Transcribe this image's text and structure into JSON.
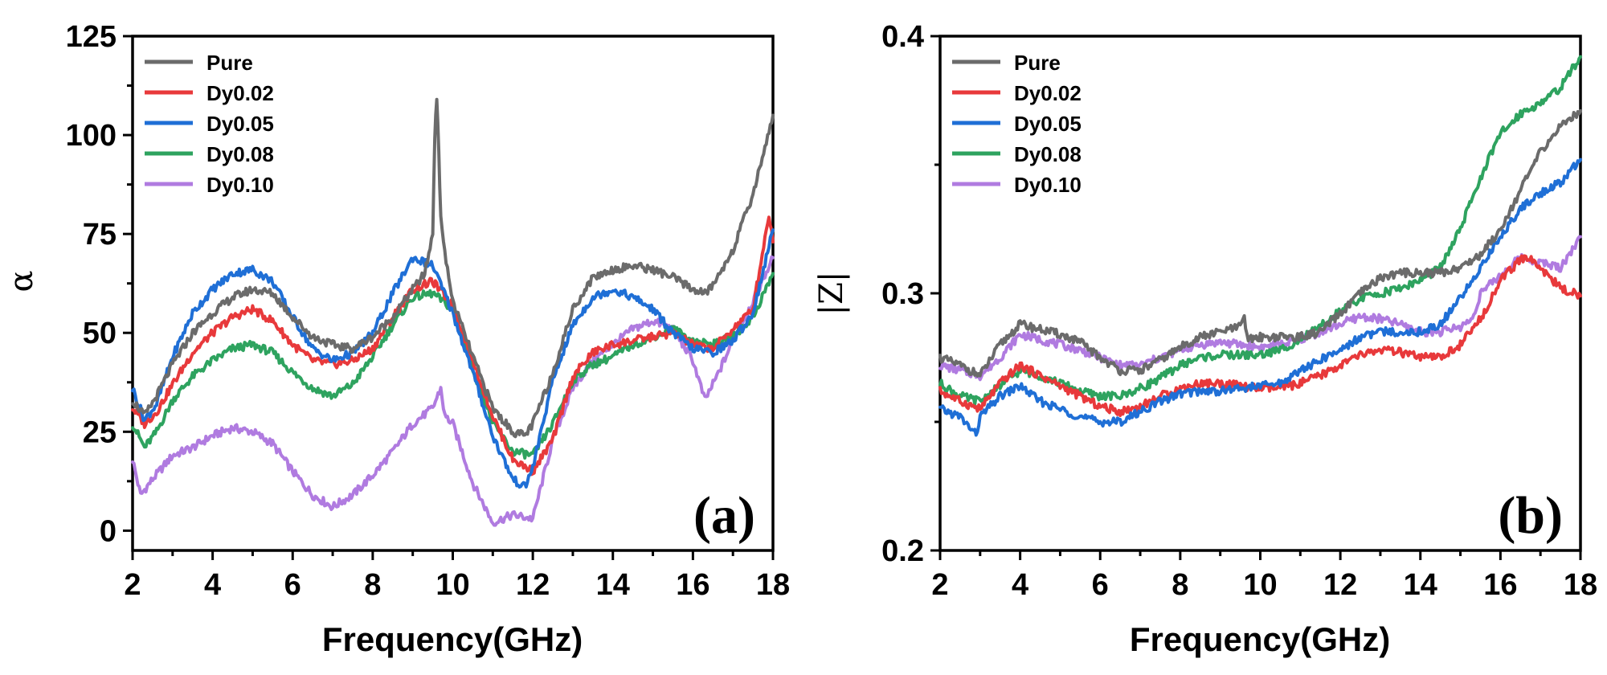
{
  "colors": {
    "Pure": "#6b6b6b",
    "Dy0.02": "#e8393b",
    "Dy0.05": "#1f6fd6",
    "Dy0.08": "#2ea35f",
    "Dy0.10": "#b07be0"
  },
  "chart_data": [
    {
      "type": "line",
      "panel_label": "(a)",
      "title": "",
      "xlabel": "Frequency(GHz)",
      "ylabel": "α",
      "xlim": [
        2,
        18
      ],
      "ylim": [
        -5,
        125
      ],
      "xticks": [
        2,
        4,
        6,
        8,
        10,
        12,
        14,
        16,
        18
      ],
      "yticks": [
        0,
        25,
        50,
        75,
        100,
        125
      ],
      "legend_position": "top-left",
      "series": [
        {
          "name": "Pure",
          "x": [
            2,
            2.3,
            2.6,
            3,
            3.5,
            4,
            4.5,
            5,
            5.5,
            6,
            6.5,
            7,
            7.5,
            8,
            8.5,
            9,
            9.3,
            9.5,
            9.55,
            9.6,
            9.65,
            9.7,
            9.8,
            10,
            10.5,
            11,
            11.5,
            11.8,
            12,
            12.5,
            13,
            13.5,
            14,
            14.5,
            15,
            15.5,
            16,
            16.3,
            16.5,
            17,
            17.5,
            18
          ],
          "y": [
            33,
            29,
            34,
            42,
            50,
            55,
            59,
            61,
            60,
            54,
            49,
            47,
            46,
            49,
            54,
            61,
            65,
            75,
            100,
            110,
            95,
            80,
            70,
            58,
            44,
            31,
            25,
            24,
            27,
            40,
            56,
            64,
            66,
            67,
            66,
            64,
            61,
            60,
            62,
            71,
            85,
            105
          ]
        },
        {
          "name": "Dy0.02",
          "x": [
            2,
            2.3,
            2.6,
            3,
            3.5,
            4,
            4.5,
            5,
            5.5,
            6,
            6.5,
            7,
            7.5,
            8,
            8.5,
            9,
            9.5,
            10,
            10.5,
            11,
            11.5,
            12,
            12.5,
            13,
            13.5,
            14,
            14.5,
            15,
            15.5,
            16,
            16.5,
            17,
            17.5,
            17.9,
            18
          ],
          "y": [
            31,
            27,
            30,
            37,
            45,
            50,
            54,
            56,
            53,
            47,
            43,
            42,
            43,
            46,
            54,
            61,
            63,
            57,
            43,
            29,
            18,
            15,
            23,
            39,
            45,
            47,
            48,
            49,
            50,
            47,
            46,
            51,
            56,
            80,
            73
          ]
        },
        {
          "name": "Dy0.05",
          "x": [
            2,
            2.3,
            2.6,
            3,
            3.5,
            4,
            4.5,
            5,
            5.5,
            6,
            6.5,
            7,
            7.5,
            8,
            8.5,
            9,
            9.5,
            10,
            10.5,
            11,
            11.5,
            11.8,
            12,
            12.5,
            13,
            13.5,
            14,
            14.5,
            15,
            15.5,
            16,
            16.5,
            17,
            17.5,
            18
          ],
          "y": [
            36,
            28,
            32,
            44,
            55,
            61,
            65,
            66,
            63,
            54,
            46,
            43,
            45,
            50,
            60,
            69,
            67,
            55,
            40,
            24,
            13,
            11,
            16,
            38,
            52,
            59,
            61,
            59,
            56,
            50,
            46,
            45,
            48,
            55,
            76
          ]
        },
        {
          "name": "Dy0.08",
          "x": [
            2,
            2.3,
            2.6,
            3,
            3.5,
            4,
            4.5,
            5,
            5.5,
            6,
            6.5,
            7,
            7.5,
            8,
            8.5,
            9,
            9.5,
            10,
            10.5,
            11,
            11.5,
            12,
            12.5,
            13,
            13.5,
            14,
            14.5,
            15,
            15.5,
            16,
            16.5,
            17,
            17.5,
            18
          ],
          "y": [
            27,
            21,
            25,
            33,
            39,
            43,
            46,
            47,
            45,
            40,
            36,
            34,
            37,
            44,
            52,
            59,
            60,
            56,
            41,
            27,
            20,
            19,
            27,
            38,
            42,
            44,
            47,
            49,
            51,
            48,
            47,
            49,
            54,
            65
          ]
        },
        {
          "name": "Dy0.10",
          "x": [
            2,
            2.2,
            2.5,
            3,
            3.5,
            4,
            4.5,
            5,
            5.5,
            6,
            6.5,
            7,
            7.5,
            8,
            8.5,
            9,
            9.5,
            9.7,
            9.8,
            10,
            10.5,
            11,
            11.5,
            12,
            12.5,
            13,
            13.5,
            14,
            14.5,
            15,
            15.5,
            16,
            16.3,
            16.6,
            17,
            17.5,
            18
          ],
          "y": [
            18,
            9,
            13,
            19,
            21,
            24,
            26,
            25,
            22,
            15,
            9,
            6,
            9,
            14,
            20,
            27,
            31,
            36,
            29,
            27,
            12,
            2,
            4,
            3,
            23,
            36,
            43,
            47,
            51,
            53,
            51,
            43,
            33,
            39,
            48,
            58,
            69
          ]
        }
      ]
    },
    {
      "type": "line",
      "panel_label": "(b)",
      "title": "",
      "xlabel": "Frequency(GHz)",
      "ylabel": "|Z|",
      "xlim": [
        2,
        18
      ],
      "ylim": [
        0.2,
        0.4
      ],
      "xticks": [
        2,
        4,
        6,
        8,
        10,
        12,
        14,
        16,
        18
      ],
      "yticks": [
        0.2,
        0.3,
        0.4
      ],
      "legend_position": "top-left",
      "series": [
        {
          "name": "Pure",
          "x": [
            2,
            2.5,
            3,
            3.5,
            4,
            4.5,
            5,
            5.5,
            6,
            6.5,
            7,
            7.5,
            8,
            8.5,
            9,
            9.5,
            9.6,
            9.7,
            10,
            10.5,
            11,
            11.5,
            12,
            12.5,
            13,
            13.5,
            14,
            14.5,
            15,
            15.5,
            16,
            16.5,
            17,
            17.5,
            18
          ],
          "y": [
            0.275,
            0.272,
            0.268,
            0.28,
            0.288,
            0.286,
            0.284,
            0.281,
            0.275,
            0.27,
            0.27,
            0.274,
            0.279,
            0.283,
            0.285,
            0.287,
            0.29,
            0.282,
            0.283,
            0.283,
            0.283,
            0.285,
            0.292,
            0.3,
            0.306,
            0.308,
            0.308,
            0.308,
            0.31,
            0.315,
            0.325,
            0.34,
            0.355,
            0.365,
            0.371
          ]
        },
        {
          "name": "Dy0.02",
          "x": [
            2,
            2.5,
            3,
            3.5,
            4,
            4.5,
            5,
            5.5,
            6,
            6.5,
            7,
            7.5,
            8,
            8.5,
            9,
            9.5,
            10,
            10.5,
            11,
            11.5,
            12,
            12.5,
            13,
            13.5,
            14,
            14.5,
            15,
            15.5,
            16,
            16.5,
            16.7,
            17,
            17.5,
            18
          ],
          "y": [
            0.262,
            0.258,
            0.255,
            0.265,
            0.272,
            0.268,
            0.264,
            0.26,
            0.256,
            0.254,
            0.256,
            0.26,
            0.263,
            0.265,
            0.265,
            0.264,
            0.263,
            0.263,
            0.265,
            0.268,
            0.272,
            0.276,
            0.278,
            0.277,
            0.275,
            0.275,
            0.28,
            0.29,
            0.305,
            0.313,
            0.314,
            0.31,
            0.302,
            0.299
          ]
        },
        {
          "name": "Dy0.05",
          "x": [
            2,
            2.5,
            2.9,
            3,
            3.5,
            4,
            4.5,
            5,
            5.5,
            6,
            6.5,
            7,
            7.5,
            8,
            8.5,
            9,
            9.5,
            10,
            10.5,
            11,
            11.5,
            12,
            12.5,
            13,
            13.5,
            14,
            14.5,
            15,
            15.5,
            16,
            16.5,
            17,
            17.5,
            18
          ],
          "y": [
            0.255,
            0.252,
            0.245,
            0.252,
            0.26,
            0.264,
            0.258,
            0.255,
            0.252,
            0.25,
            0.25,
            0.254,
            0.258,
            0.261,
            0.262,
            0.262,
            0.263,
            0.264,
            0.265,
            0.27,
            0.274,
            0.278,
            0.283,
            0.285,
            0.285,
            0.285,
            0.288,
            0.298,
            0.31,
            0.322,
            0.333,
            0.339,
            0.343,
            0.352
          ]
        },
        {
          "name": "Dy0.08",
          "x": [
            2,
            2.5,
            3,
            3.5,
            4,
            4.5,
            5,
            5.5,
            6,
            6.5,
            7,
            7.5,
            8,
            8.5,
            9,
            9.5,
            10,
            10.5,
            11,
            11.5,
            12,
            12.5,
            13,
            13.5,
            14,
            14.5,
            15,
            15.5,
            16,
            16.5,
            17,
            17.5,
            18
          ],
          "y": [
            0.265,
            0.26,
            0.258,
            0.264,
            0.27,
            0.268,
            0.265,
            0.262,
            0.26,
            0.26,
            0.263,
            0.267,
            0.272,
            0.275,
            0.276,
            0.276,
            0.276,
            0.278,
            0.282,
            0.287,
            0.293,
            0.298,
            0.3,
            0.302,
            0.305,
            0.31,
            0.325,
            0.345,
            0.362,
            0.37,
            0.374,
            0.38,
            0.392
          ]
        },
        {
          "name": "Dy0.10",
          "x": [
            2,
            2.5,
            3,
            3.5,
            4,
            4.5,
            5,
            5.5,
            6,
            6.5,
            7,
            7.5,
            8,
            8.5,
            9,
            9.5,
            10,
            10.5,
            11,
            11.5,
            12,
            12.5,
            13,
            13.5,
            14,
            14.5,
            15,
            15.3,
            15.5,
            16,
            16.5,
            17,
            17.5,
            18
          ],
          "y": [
            0.272,
            0.27,
            0.268,
            0.275,
            0.284,
            0.282,
            0.28,
            0.278,
            0.275,
            0.272,
            0.272,
            0.275,
            0.278,
            0.28,
            0.281,
            0.28,
            0.279,
            0.28,
            0.282,
            0.285,
            0.288,
            0.291,
            0.29,
            0.288,
            0.285,
            0.285,
            0.287,
            0.29,
            0.3,
            0.307,
            0.314,
            0.312,
            0.31,
            0.322
          ]
        }
      ]
    }
  ]
}
